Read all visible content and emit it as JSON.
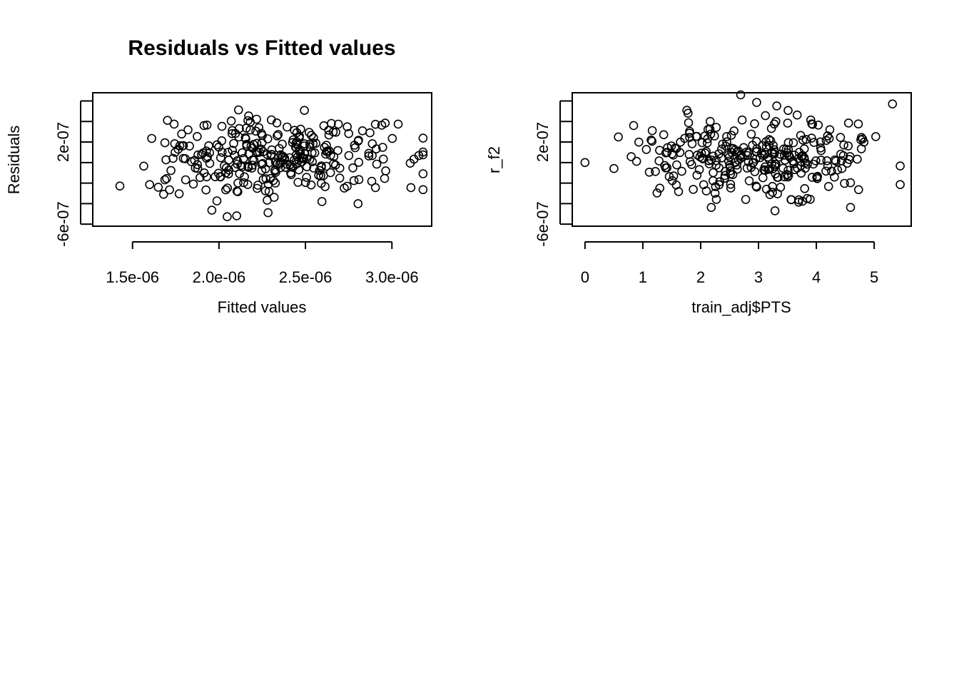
{
  "chart_data": [
    {
      "type": "scatter",
      "title": "Residuals vs Fitted values",
      "xlabel": "Fitted values",
      "ylabel": "Residuals",
      "xlim": [
        1.27e-06,
        3.23e-06
      ],
      "ylim": [
        -6.2e-07,
        6.8e-07
      ],
      "xticks": [
        1.5e-06,
        2e-06,
        2.5e-06,
        3e-06
      ],
      "xtick_labels": [
        "1.5e-06",
        "2.0e-06",
        "2.5e-06",
        "3.0e-06"
      ],
      "yticks": [
        -6e-07,
        -4e-07,
        -2e-07,
        0,
        2e-07,
        4e-07,
        6e-07
      ],
      "ytick_labels": [
        "-6e-07",
        "",
        "",
        "",
        "2e-07",
        "",
        ""
      ],
      "grid": false,
      "marker": "open-circle",
      "seed": 7,
      "n_points": 300
    },
    {
      "type": "scatter",
      "title": "",
      "xlabel": "train_adj$PTS",
      "ylabel": "r_f2",
      "xlim": [
        -0.22,
        5.64
      ],
      "ylim": [
        -6.2e-07,
        6.8e-07
      ],
      "xticks": [
        0,
        1,
        2,
        3,
        4,
        5
      ],
      "xtick_labels": [
        "0",
        "1",
        "2",
        "3",
        "4",
        "5"
      ],
      "yticks": [
        -6e-07,
        -4e-07,
        -2e-07,
        0,
        2e-07,
        4e-07,
        6e-07
      ],
      "ytick_labels": [
        "-6e-07",
        "",
        "",
        "",
        "2e-07",
        "",
        ""
      ],
      "grid": false,
      "marker": "open-circle",
      "seed": 13,
      "n_points": 300
    }
  ]
}
